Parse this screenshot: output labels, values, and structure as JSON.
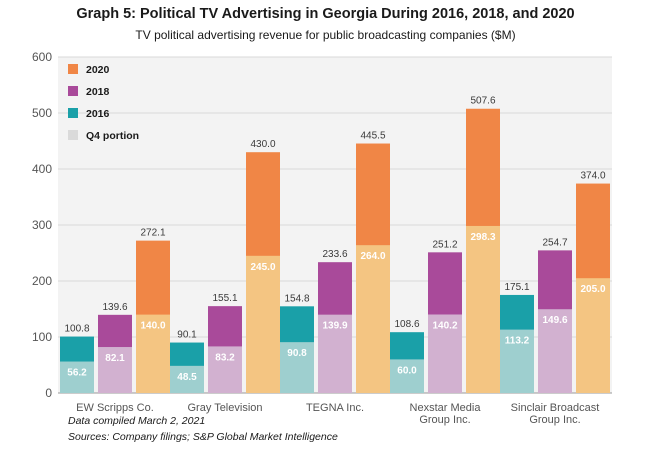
{
  "chart_data": {
    "type": "bar",
    "title": "Graph 5: Political TV Advertising in Georgia During 2016, 2018, and 2020",
    "subtitle": "TV political advertising revenue for public broadcasting companies ($M)",
    "categories": [
      [
        "EW Scripps Co."
      ],
      [
        "Gray Television"
      ],
      [
        "TEGNA Inc."
      ],
      [
        "Nexstar Media",
        "Group Inc."
      ],
      [
        "Sinclair Broadcast",
        "Group Inc."
      ]
    ],
    "ylim": [
      0,
      600
    ],
    "yticks": [
      0,
      100,
      200,
      300,
      400,
      500,
      600
    ],
    "grid": true,
    "legend_position": "top-left",
    "series": [
      {
        "name": "2016",
        "color": "#1aa0a8",
        "q4_color": "#9ecfcf",
        "values": [
          100.8,
          90.1,
          154.8,
          108.6,
          175.1
        ],
        "q4_values": [
          56.2,
          48.5,
          90.8,
          60.0,
          113.2
        ]
      },
      {
        "name": "2018",
        "color": "#a94a9a",
        "q4_color": "#d2b1d0",
        "values": [
          139.6,
          155.1,
          233.6,
          251.2,
          254.7
        ],
        "q4_values": [
          82.1,
          83.2,
          139.9,
          140.2,
          149.6
        ]
      },
      {
        "name": "2020",
        "color": "#f08646",
        "q4_color": "#f4c582",
        "values": [
          272.1,
          430.0,
          445.5,
          507.6,
          374.0
        ],
        "q4_values": [
          140.0,
          245.0,
          264.0,
          298.3,
          205.0
        ]
      }
    ],
    "legend": [
      {
        "label": "2020",
        "color": "#f08646"
      },
      {
        "label": "2018",
        "color": "#a94a9a"
      },
      {
        "label": "2016",
        "color": "#1aa0a8"
      },
      {
        "label": "Q4 portion",
        "color": "#dadada"
      }
    ]
  },
  "notes": {
    "compiled": "Data compiled March 2, 2021",
    "sources": "Sources: Company filings; S&P Global Market Intelligence"
  }
}
